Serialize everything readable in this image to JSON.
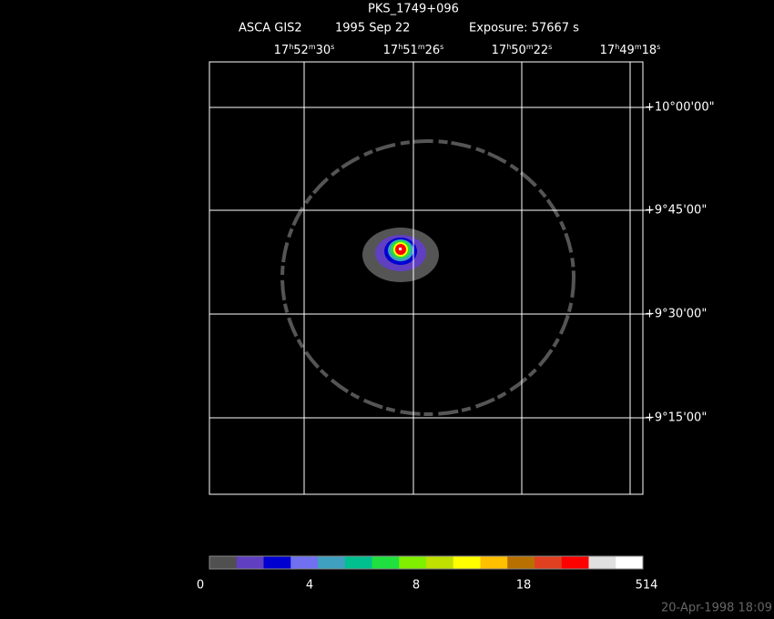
{
  "header": {
    "title": "PKS_1749+096",
    "instrument": "ASCA GIS2",
    "date": "1995 Sep 22",
    "exposure": "Exposure: 57667 s"
  },
  "ra_labels": [
    [
      "17",
      "h",
      "52",
      "m",
      "30",
      "s"
    ],
    [
      "17",
      "h",
      "51",
      "m",
      "26",
      "s"
    ],
    [
      "17",
      "h",
      "50",
      "m",
      "22",
      "s"
    ],
    [
      "17",
      "h",
      "49",
      "m",
      "18",
      "s"
    ]
  ],
  "dec_labels": [
    "+10°00'00\"",
    "+9°45'00\"",
    "+9°30'00\"",
    "+9°15'00\""
  ],
  "colorbar": {
    "colors": [
      "#505050",
      "#6040c0",
      "#0000d0",
      "#7070f0",
      "#40a0c0",
      "#00c090",
      "#20e040",
      "#80f000",
      "#c0e000",
      "#ffff00",
      "#ffc000",
      "#b87000",
      "#e04020",
      "#ff0000",
      "#e0e0e0",
      "#ffffff"
    ],
    "labels": [
      "0",
      "4",
      "8",
      "18",
      "514"
    ]
  },
  "footer": {
    "timestamp": "20-Apr-1998 18:09"
  }
}
